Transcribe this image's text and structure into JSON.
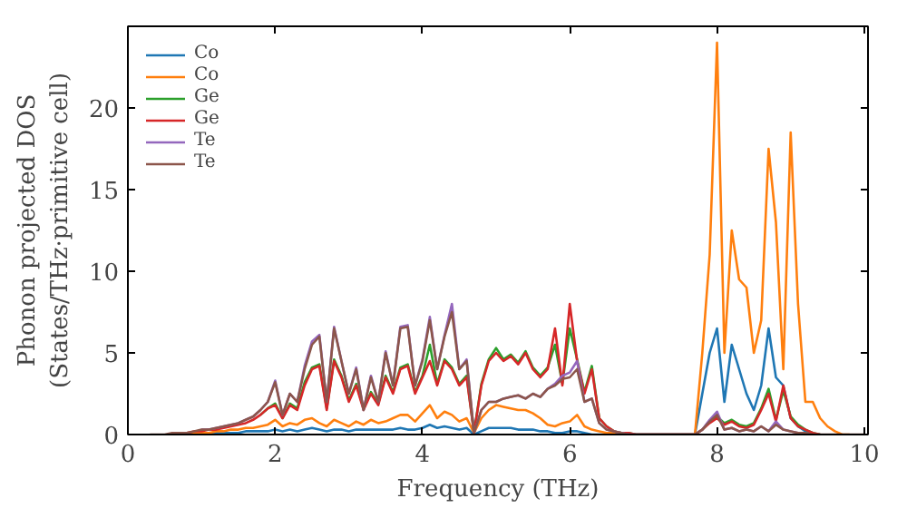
{
  "chart_data": {
    "type": "line",
    "xlabel": "Frequency (THz)",
    "ylabel": "Phonon projected DOS\n(States/THz·primitive cell)",
    "x": [
      0.3,
      0.4,
      0.5,
      0.6,
      0.7,
      0.8,
      0.9,
      1,
      1.1,
      1.2,
      1.3,
      1.4,
      1.5,
      1.6,
      1.7,
      1.8,
      1.9,
      2,
      2.1,
      2.2,
      2.3,
      2.4,
      2.5,
      2.6,
      2.7,
      2.8,
      2.9,
      3,
      3.1,
      3.2,
      3.3,
      3.4,
      3.5,
      3.6,
      3.7,
      3.8,
      3.9,
      4,
      4.1,
      4.2,
      4.3,
      4.4,
      4.5,
      4.6,
      4.7,
      4.8,
      4.9,
      5,
      5.1,
      5.2,
      5.3,
      5.4,
      5.5,
      5.6,
      5.7,
      5.8,
      5.9,
      6,
      6.1,
      6.2,
      6.3,
      6.4,
      6.5,
      6.6,
      6.7,
      6.8,
      6.9,
      7,
      7.1,
      7.2,
      7.3,
      7.4,
      7.5,
      7.6,
      7.7,
      7.8,
      7.9,
      8,
      8.1,
      8.2,
      8.3,
      8.4,
      8.5,
      8.6,
      8.7,
      8.8,
      8.9,
      9,
      9.1,
      9.2,
      9.3,
      9.4,
      9.5,
      9.6,
      9.7,
      9.8,
      9.9,
      10
    ],
    "series": [
      {
        "name": "Co",
        "color": "#1f77b4",
        "values": [
          null,
          null,
          null,
          null,
          null,
          null,
          null,
          null,
          0.1,
          0.1,
          0.1,
          0.1,
          0.1,
          0.2,
          0.2,
          0.2,
          0.2,
          0.3,
          0.2,
          0.3,
          0.2,
          0.3,
          0.4,
          0.3,
          0.2,
          0.3,
          0.3,
          0.2,
          0.3,
          0.3,
          0.3,
          0.3,
          0.3,
          0.3,
          0.4,
          0.3,
          0.3,
          0.4,
          0.6,
          0.4,
          0.5,
          0.4,
          0.3,
          0.4,
          0,
          0.2,
          0.4,
          0.4,
          0.4,
          0.4,
          0.3,
          0.3,
          0.3,
          0.2,
          0.2,
          0.1,
          0.1,
          0.2,
          0.2,
          0.1,
          0,
          0,
          0,
          0,
          0,
          0,
          0,
          0,
          0,
          0,
          0,
          0,
          0,
          0,
          0,
          2.5,
          5.0,
          6.5,
          2.0,
          5.5,
          4.0,
          2.5,
          1.5,
          3.0,
          6.5,
          3.5,
          3.0,
          1.0,
          0.5,
          0.2,
          0,
          0,
          null,
          null,
          null,
          null,
          null,
          null
        ]
      },
      {
        "name": "Co",
        "color": "#ff7f0e",
        "values": [
          null,
          null,
          null,
          null,
          null,
          0.1,
          0.1,
          0.1,
          0.1,
          0.2,
          0.2,
          0.3,
          0.3,
          0.4,
          0.4,
          0.5,
          0.6,
          0.9,
          0.5,
          0.7,
          0.6,
          0.9,
          1.0,
          0.7,
          0.5,
          0.9,
          0.7,
          0.5,
          0.8,
          0.6,
          0.9,
          0.7,
          0.8,
          1.0,
          1.2,
          1.2,
          0.8,
          1.3,
          1.8,
          1.0,
          1.4,
          1.2,
          0.8,
          1.0,
          0.1,
          1.0,
          1.5,
          1.8,
          1.7,
          1.6,
          1.5,
          1.5,
          1.3,
          1.0,
          0.6,
          0.5,
          0.7,
          0.8,
          1.2,
          0.5,
          0.3,
          0.2,
          0.1,
          0.1,
          0,
          0,
          0,
          0,
          0,
          0,
          0,
          0,
          0,
          0,
          0,
          5.0,
          11.0,
          24.0,
          5.0,
          12.5,
          9.5,
          9.0,
          5.0,
          7.0,
          17.5,
          13.0,
          4.0,
          18.5,
          8.0,
          2.0,
          2.0,
          1.0,
          0.5,
          0.2,
          0,
          0,
          null,
          null
        ]
      },
      {
        "name": "Ge",
        "color": "#2ca02c",
        "values": [
          null,
          null,
          null,
          null,
          null,
          null,
          null,
          null,
          null,
          null,
          null,
          null,
          null,
          null,
          null,
          1.2,
          1.6,
          1.9,
          1.0,
          1.9,
          1.6,
          3.2,
          4.1,
          4.3,
          1.6,
          4.6,
          3.6,
          2.1,
          3.1,
          1.6,
          2.6,
          1.9,
          3.6,
          2.6,
          4.1,
          4.3,
          2.6,
          3.6,
          5.5,
          3.1,
          4.6,
          4.1,
          3.1,
          3.6,
          0.1,
          3.1,
          4.6,
          5.3,
          4.6,
          4.9,
          4.4,
          5.1,
          4.1,
          3.6,
          4.1,
          5.5,
          3.1,
          6.5,
          4.6,
          2.6,
          4.2,
          1.0,
          0.5,
          0.2,
          0.1,
          0.1,
          0,
          0,
          0,
          0,
          0,
          0,
          0,
          0,
          0,
          0.3,
          0.8,
          1.1,
          0.7,
          0.9,
          0.6,
          0.5,
          0.7,
          1.6,
          2.8,
          0.9,
          2.7,
          1.1,
          0.6,
          0.3,
          0.1,
          0,
          null,
          null,
          null,
          null,
          null,
          null
        ]
      },
      {
        "name": "Ge",
        "color": "#d62728",
        "values": [
          null,
          null,
          null,
          null,
          null,
          0.1,
          0.2,
          0.2,
          0.3,
          0.3,
          0.4,
          0.5,
          0.6,
          0.7,
          0.9,
          1.2,
          1.6,
          1.8,
          1.0,
          1.8,
          1.5,
          3.0,
          4.0,
          4.2,
          1.5,
          4.5,
          3.5,
          2.0,
          3.0,
          1.5,
          2.5,
          1.8,
          3.5,
          2.5,
          4.0,
          4.2,
          2.5,
          3.5,
          4.5,
          3.0,
          4.5,
          4.0,
          3.0,
          3.5,
          0.1,
          3.0,
          4.5,
          5.0,
          4.5,
          4.8,
          4.3,
          5.0,
          4.0,
          3.5,
          4.0,
          6.5,
          3.0,
          8.0,
          4.5,
          2.5,
          4.0,
          1.0,
          0.5,
          0.2,
          0.1,
          0.1,
          0,
          0,
          0,
          0,
          0,
          0,
          0,
          0,
          0,
          0.3,
          0.7,
          1.0,
          0.6,
          0.8,
          0.5,
          0.4,
          0.6,
          1.5,
          2.5,
          0.8,
          3.0,
          1.0,
          0.5,
          0.3,
          0.1,
          0,
          null,
          null,
          null,
          null,
          null,
          null
        ]
      },
      {
        "name": "Te",
        "color": "#9467bd",
        "values": [
          null,
          null,
          null,
          null,
          null,
          null,
          null,
          0.3,
          0.3,
          0.4,
          0.5,
          0.6,
          0.7,
          0.9,
          1.1,
          1.5,
          2.0,
          3.3,
          1.2,
          2.5,
          2.0,
          4.2,
          5.7,
          6.1,
          2.0,
          6.6,
          4.5,
          2.5,
          4.1,
          1.5,
          3.6,
          2.0,
          5.1,
          3.0,
          6.6,
          6.7,
          3.0,
          4.6,
          7.2,
          4.0,
          6.1,
          8.0,
          4.0,
          4.6,
          0.1,
          1.5,
          2.0,
          2.0,
          2.2,
          2.3,
          2.4,
          2.2,
          2.5,
          2.3,
          2.8,
          3.1,
          3.6,
          3.8,
          4.5,
          2.0,
          2.2,
          0.7,
          0.3,
          0.2,
          0.1,
          0,
          0,
          0,
          0,
          0,
          0,
          0,
          0,
          0,
          0,
          0.3,
          0.9,
          1.4,
          0.3,
          0.4,
          0.2,
          0.3,
          0.2,
          0.5,
          0.2,
          0.8,
          0.3,
          0.2,
          0.1,
          0.1,
          null,
          null,
          null,
          null,
          null,
          null,
          null,
          null
        ]
      },
      {
        "name": "Te",
        "color": "#8c564b",
        "values": [
          0,
          0,
          0,
          0.1,
          0.1,
          0.1,
          0.2,
          0.3,
          0.3,
          0.4,
          0.5,
          0.6,
          0.7,
          0.9,
          1.1,
          1.5,
          2.0,
          3.2,
          1.2,
          2.5,
          2.0,
          4.0,
          5.5,
          6.0,
          2.0,
          6.5,
          4.5,
          2.5,
          4.0,
          1.5,
          3.5,
          2.0,
          5.0,
          3.0,
          6.5,
          6.6,
          3.0,
          4.5,
          7.0,
          4.0,
          6.0,
          7.5,
          4.0,
          4.5,
          0.1,
          1.5,
          2.0,
          2.0,
          2.2,
          2.3,
          2.4,
          2.2,
          2.5,
          2.3,
          2.8,
          3.0,
          3.4,
          3.5,
          4.0,
          2.0,
          2.2,
          0.7,
          0.3,
          0.2,
          0.1,
          0,
          0,
          0,
          0,
          0,
          0,
          0,
          0,
          0,
          0,
          0.3,
          0.8,
          1.2,
          0.3,
          0.4,
          0.2,
          0.3,
          0.2,
          0.5,
          0.2,
          0.6,
          0.3,
          0.2,
          0.1,
          0.1,
          0,
          0,
          0,
          0,
          0,
          0,
          0,
          0
        ]
      }
    ],
    "xlim": [
      0,
      10.05
    ],
    "ylim": [
      0,
      25
    ],
    "xticks": [
      0,
      2,
      4,
      6,
      8,
      10
    ],
    "yticks": [
      0,
      5,
      10,
      15,
      20
    ],
    "grid": false,
    "legend": "top left",
    "marker": "none",
    "line_style": "solid"
  }
}
